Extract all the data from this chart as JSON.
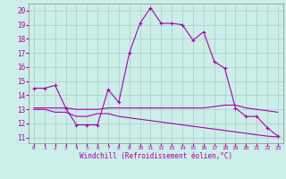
{
  "xlabel": "Windchill (Refroidissement éolien,°C)",
  "background_color": "#cceee8",
  "line_color": "#aa00aa",
  "grid_color": "#aacccc",
  "x_ticks": [
    0,
    1,
    2,
    3,
    4,
    5,
    6,
    7,
    8,
    9,
    10,
    11,
    12,
    13,
    14,
    15,
    16,
    17,
    18,
    19,
    20,
    21,
    22,
    23
  ],
  "y_ticks": [
    11,
    12,
    13,
    14,
    15,
    16,
    17,
    18,
    19,
    20
  ],
  "xlim": [
    -0.5,
    23.5
  ],
  "ylim": [
    10.6,
    20.5
  ],
  "line1_x": [
    0,
    1,
    2,
    3,
    4,
    5,
    6,
    7,
    8,
    9,
    10,
    11,
    12,
    13,
    14,
    15,
    16,
    17,
    18,
    19,
    20,
    21,
    22,
    23
  ],
  "line1_y": [
    14.5,
    14.5,
    14.7,
    13.1,
    11.9,
    11.9,
    11.9,
    14.4,
    13.5,
    17.0,
    19.1,
    20.2,
    19.1,
    19.1,
    19.0,
    17.9,
    18.5,
    16.4,
    15.9,
    13.1,
    12.5,
    12.5,
    11.7,
    11.1
  ],
  "line2_x": [
    0,
    1,
    2,
    3,
    4,
    5,
    6,
    7,
    8,
    9,
    10,
    11,
    12,
    13,
    14,
    15,
    16,
    17,
    18,
    19,
    20,
    21,
    22,
    23
  ],
  "line2_y": [
    13.1,
    13.1,
    13.1,
    13.1,
    13.0,
    13.0,
    13.0,
    13.1,
    13.1,
    13.1,
    13.1,
    13.1,
    13.1,
    13.1,
    13.1,
    13.1,
    13.1,
    13.2,
    13.3,
    13.3,
    13.1,
    13.0,
    12.9,
    12.8
  ],
  "line3_x": [
    0,
    1,
    2,
    3,
    4,
    5,
    6,
    7,
    8,
    9,
    10,
    11,
    12,
    13,
    14,
    15,
    16,
    17,
    18,
    19,
    20,
    21,
    22,
    23
  ],
  "line3_y": [
    13.0,
    13.0,
    12.8,
    12.8,
    12.5,
    12.5,
    12.7,
    12.7,
    12.5,
    12.4,
    12.3,
    12.2,
    12.1,
    12.0,
    11.9,
    11.8,
    11.7,
    11.6,
    11.5,
    11.4,
    11.3,
    11.2,
    11.1,
    11.05
  ]
}
